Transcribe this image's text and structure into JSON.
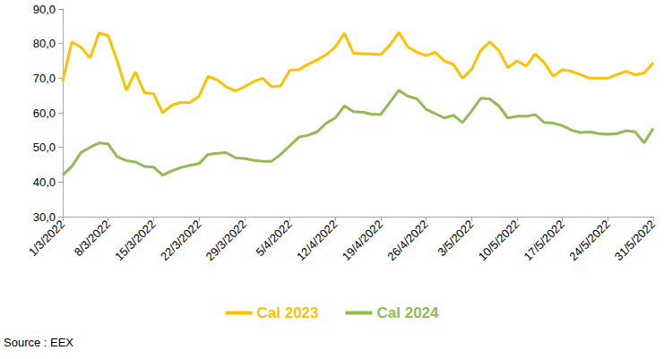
{
  "chart_data": {
    "type": "line",
    "categories": [
      "1/3/2022",
      null,
      null,
      null,
      null,
      "8/3/2022",
      null,
      null,
      null,
      null,
      "15/3/2022",
      null,
      null,
      null,
      null,
      "22/3/2022",
      null,
      null,
      null,
      null,
      "29/3/2022",
      null,
      null,
      null,
      null,
      "5/4/2022",
      null,
      null,
      null,
      null,
      "12/4/2022",
      null,
      null,
      null,
      null,
      "19/4/2022",
      null,
      null,
      null,
      null,
      "26/4/2022",
      null,
      null,
      null,
      null,
      "3/5/2022",
      null,
      null,
      null,
      null,
      "10/5/2022",
      null,
      null,
      null,
      null,
      "17/5/2022",
      null,
      null,
      null,
      null,
      "24/5/2022",
      null,
      null,
      null,
      null,
      "31/5/2022"
    ],
    "series": [
      {
        "name": "Cal 2023",
        "color": "#FFC000",
        "values": [
          69,
          80.5,
          79,
          75.8,
          83,
          82.3,
          75,
          66.5,
          71.8,
          65.8,
          65.5,
          60,
          62.2,
          63,
          63,
          64.8,
          70.5,
          69.5,
          67.5,
          66.3,
          67.5,
          69,
          70,
          67.5,
          67.8,
          72.3,
          72.5,
          74,
          75.3,
          76.8,
          79,
          83,
          77.2,
          77.1,
          77,
          76.8,
          79.5,
          83.2,
          79,
          77.5,
          76.5,
          77.5,
          75,
          74,
          70,
          72.5,
          78,
          80.5,
          78,
          73,
          75,
          73.5,
          77,
          74.5,
          70.5,
          72.5,
          72,
          71,
          70,
          70,
          70,
          71,
          72,
          71,
          71.5,
          74.5
        ]
      },
      {
        "name": "Cal 2024",
        "color": "#92BB54",
        "values": [
          42,
          44.5,
          48.5,
          50,
          51.3,
          51,
          47.3,
          46.2,
          45.8,
          44.5,
          44.3,
          42,
          43.2,
          44.2,
          44.8,
          45.3,
          48,
          48.3,
          48.5,
          47,
          46.8,
          46.3,
          46,
          46,
          48,
          50.5,
          53,
          53.5,
          54.5,
          57,
          58.5,
          62,
          60.3,
          60.2,
          59.6,
          59.5,
          63,
          66.5,
          64.8,
          64,
          61,
          59.8,
          58.5,
          59.3,
          57.2,
          60.5,
          64.2,
          64,
          62,
          58.5,
          59,
          59,
          59.5,
          57.2,
          57,
          56.3,
          55,
          54.3,
          54.5,
          54,
          53.8,
          54,
          54.8,
          54.5,
          51.3,
          55.5
        ]
      }
    ],
    "ylim": [
      30,
      90
    ],
    "yticks": [
      {
        "value": 30,
        "label": "30,0"
      },
      {
        "value": 40,
        "label": "40,0"
      },
      {
        "value": 50,
        "label": "50,0"
      },
      {
        "value": 60,
        "label": "60,0"
      },
      {
        "value": 70,
        "label": "70,0"
      },
      {
        "value": 80,
        "label": "80,0"
      },
      {
        "value": 90,
        "label": "90,0"
      }
    ],
    "grid": false,
    "legend": "bottom",
    "annotations": [
      "Source : EEX"
    ]
  }
}
